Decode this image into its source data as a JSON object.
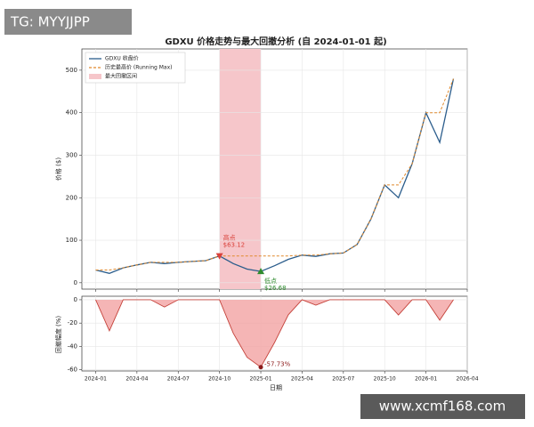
{
  "overlay": {
    "tag": "TG: MYYJJPP",
    "site": "www.xcmf168.com"
  },
  "chart_data": [
    {
      "type": "line",
      "title": "GDXU 价格走势与最大回撤分析 (自 2024-01-01 起)",
      "y_label": "价格 ($)",
      "x": [
        "2024-01",
        "2024-02",
        "2024-03",
        "2024-04",
        "2024-05",
        "2024-06",
        "2024-07",
        "2024-08",
        "2024-09",
        "2024-10",
        "2024-11",
        "2024-12",
        "2025-01",
        "2025-02",
        "2025-03",
        "2025-04",
        "2025-05",
        "2025-06",
        "2025-07",
        "2025-08",
        "2025-09",
        "2025-10",
        "2025-11",
        "2025-12",
        "2026-01",
        "2026-02",
        "2026-03"
      ],
      "series": [
        {
          "name": "GDXU 收盘价",
          "color": "#2b5d8c",
          "values": [
            30,
            22,
            35,
            42,
            48,
            45,
            48,
            50,
            52,
            63.12,
            45,
            32,
            26.68,
            40,
            55,
            65,
            62,
            68,
            70,
            90,
            150,
            230,
            200,
            280,
            400,
            330,
            480
          ]
        },
        {
          "name": "历史最高价 (Running Max)",
          "color": "#e0892c",
          "values": [
            30,
            30,
            35,
            42,
            48,
            48,
            48,
            50,
            52,
            63.12,
            63.12,
            63.12,
            63.12,
            63.12,
            63.12,
            65,
            65,
            68,
            70,
            90,
            150,
            230,
            230,
            280,
            400,
            400,
            480
          ]
        }
      ],
      "span": {
        "name": "最大回撤区间",
        "color": "#f6c6ca",
        "x": [
          "2024-10",
          "2025-01"
        ]
      },
      "annotations": [
        {
          "x": "2024-10",
          "value": 63.12,
          "title": "高点",
          "label": "$63.12",
          "color": "#d9413a"
        },
        {
          "x": "2025-01",
          "value": 26.68,
          "title": "低点",
          "label": "$26.68",
          "color": "#2e8b2e"
        }
      ],
      "xlim": [
        "2023-12",
        "2026-04"
      ],
      "xticks": [
        "2024-01",
        "2024-04",
        "2024-07",
        "2024-10",
        "2025-01",
        "2025-04",
        "2025-07",
        "2025-10",
        "2026-01",
        "2026-04"
      ],
      "ylim": [
        -15,
        550
      ],
      "yticks": [
        0,
        100,
        200,
        300,
        400,
        500
      ],
      "grid": true
    },
    {
      "type": "area",
      "y_label": "回撤幅度 (%)",
      "x_label": "日期",
      "x": [
        "2024-01",
        "2024-02",
        "2024-03",
        "2024-04",
        "2024-05",
        "2024-06",
        "2024-07",
        "2024-08",
        "2024-09",
        "2024-10",
        "2024-11",
        "2024-12",
        "2025-01",
        "2025-02",
        "2025-03",
        "2025-04",
        "2025-05",
        "2025-06",
        "2025-07",
        "2025-08",
        "2025-09",
        "2025-10",
        "2025-11",
        "2025-12",
        "2026-01",
        "2026-02",
        "2026-03"
      ],
      "values": [
        0,
        -26.67,
        0,
        0,
        0,
        -6.25,
        0,
        0,
        0,
        0,
        -28.71,
        -49.3,
        -57.73,
        -36.63,
        -12.86,
        0,
        -4.62,
        0,
        0,
        0,
        0,
        0,
        -13.04,
        0,
        0,
        -17.5,
        0
      ],
      "color": "#f2a3a3",
      "line_color": "#c4423a",
      "annotations": [
        {
          "x": "2025-01",
          "value": -57.73,
          "label": "-57.73%",
          "color": "#8b1a1a"
        }
      ],
      "xlim": [
        "2023-12",
        "2026-04"
      ],
      "xticks": [
        "2024-01",
        "2024-04",
        "2024-07",
        "2024-10",
        "2025-01",
        "2025-04",
        "2025-07",
        "2025-10",
        "2026-01",
        "2026-04"
      ],
      "ylim": [
        -61,
        3
      ],
      "yticks": [
        0,
        -20,
        -40,
        -60
      ],
      "grid": true
    }
  ]
}
